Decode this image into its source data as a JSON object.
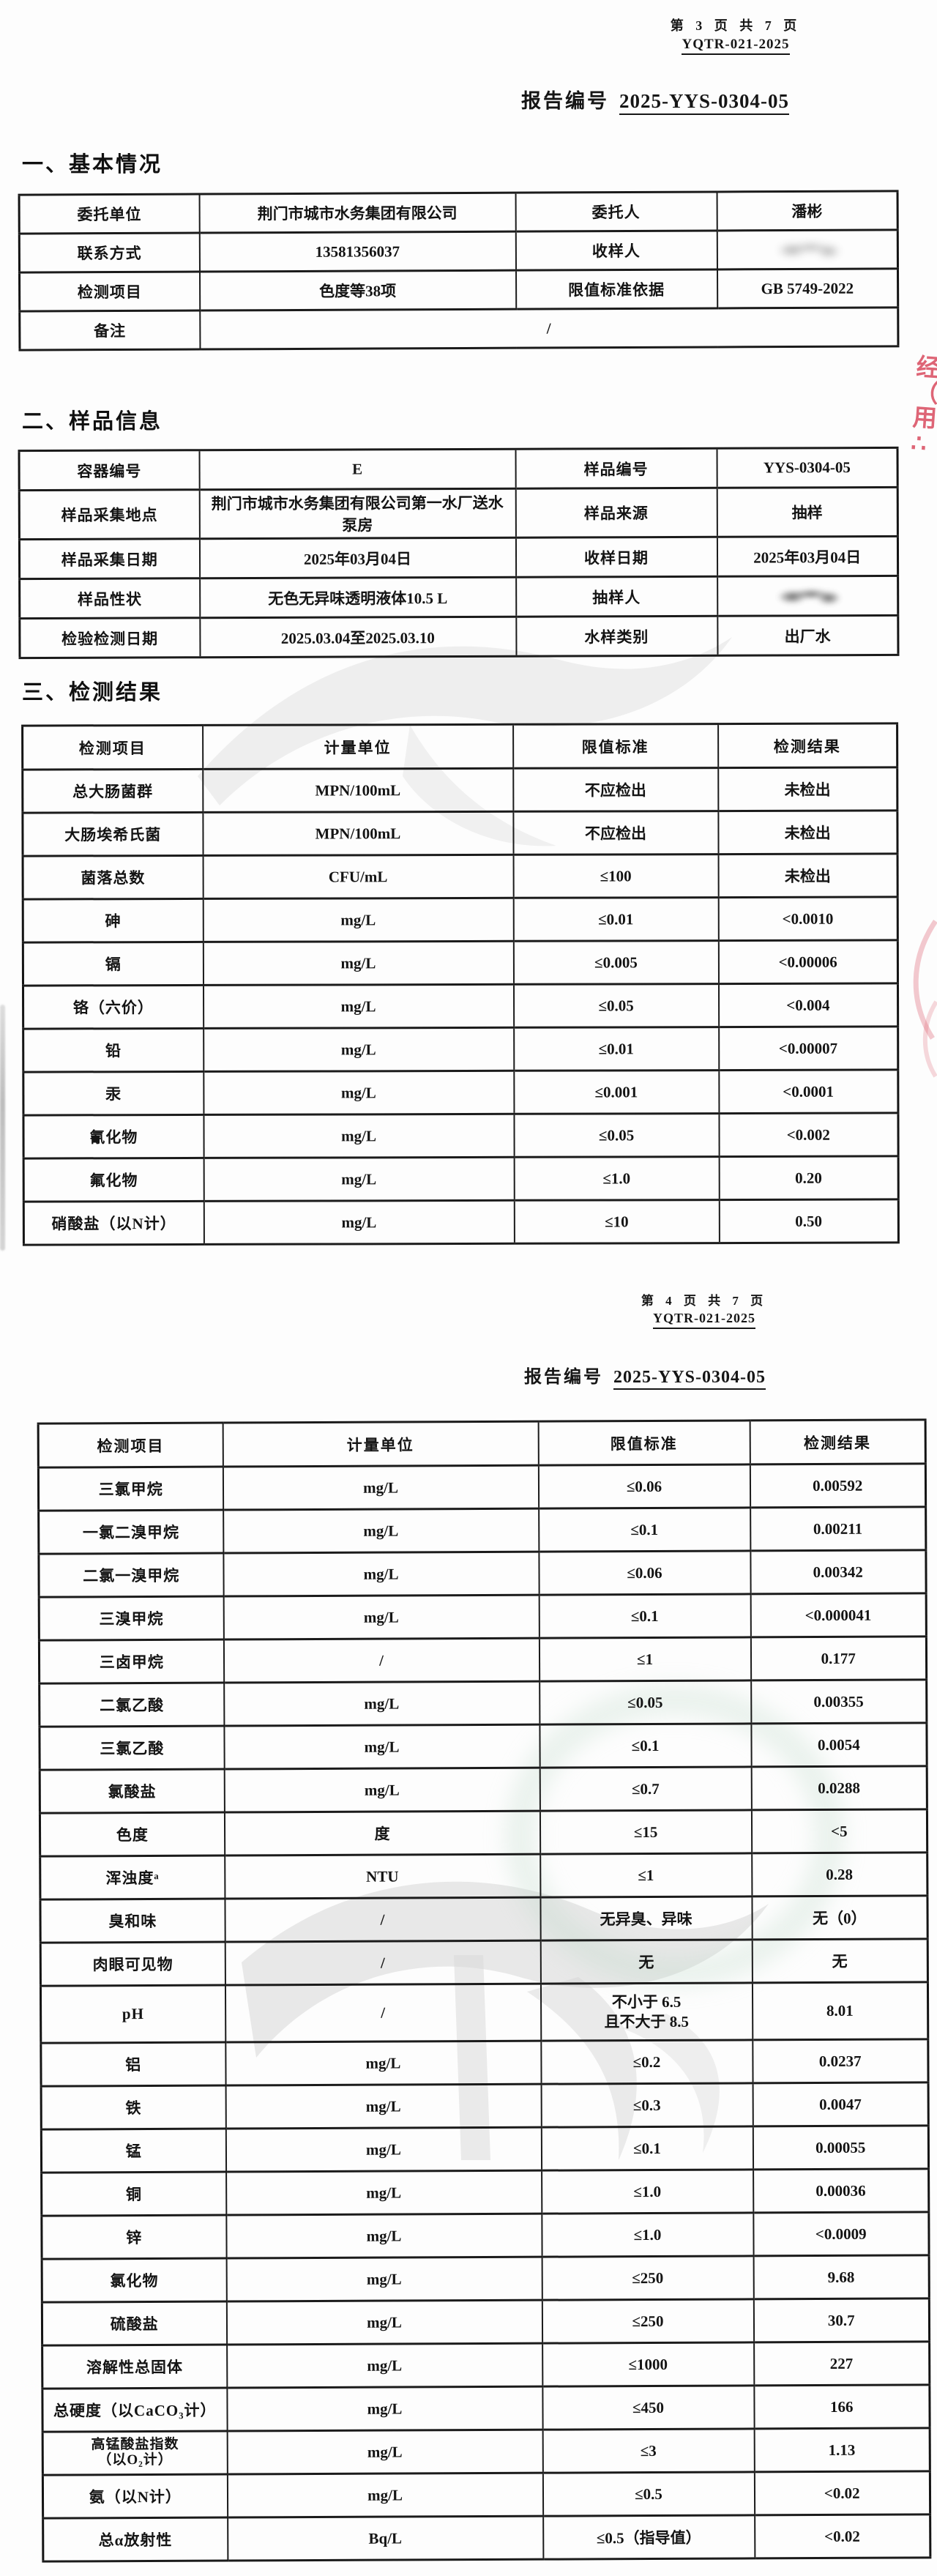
{
  "page3": {
    "page_line": "第 3 页 共 7 页",
    "doc_code": "YQTR-021-2025",
    "report_label": "报告编号",
    "report_number": "2025-YYS-0304-05",
    "section_basic": {
      "title": "一、基本情况",
      "rows": [
        {
          "cells": [
            "委托单位",
            "荆门市城市水务集团有限公司",
            "委托人",
            "潘彬"
          ]
        },
        {
          "cells": [
            "联系方式",
            "13581356037",
            "收样人",
            {
              "signature": "light"
            }
          ]
        },
        {
          "cells": [
            "检测项目",
            "色度等38项",
            "限值标准依据",
            "GB 5749-2022"
          ]
        },
        {
          "cells": [
            "备注",
            "/"
          ],
          "span": 3
        }
      ]
    },
    "section_sample": {
      "title": "二、样品信息",
      "rows": [
        {
          "cells": [
            "容器编号",
            "E",
            "样品编号",
            "YYS-0304-05"
          ]
        },
        {
          "cells": [
            "样品采集地点",
            "荆门市城市水务集团有限公司第一水厂送水泵房",
            "样品来源",
            "抽样"
          ]
        },
        {
          "cells": [
            "样品采集日期",
            "2025年03月04日",
            "收样日期",
            "2025年03月04日"
          ]
        },
        {
          "cells": [
            "样品性状",
            "无色无异味透明液体10.5 L",
            "抽样人",
            {
              "signature": "dark"
            }
          ]
        },
        {
          "cells": [
            "检验检测日期",
            "2025.03.04至2025.03.10",
            "水样类别",
            "出厂水"
          ]
        }
      ]
    },
    "section_results": {
      "title": "三、检测结果",
      "headers": [
        "检测项目",
        "计量单位",
        "限值标准",
        "检测结果"
      ],
      "rows": [
        [
          "总大肠菌群",
          "MPN/100mL",
          "不应检出",
          "未检出"
        ],
        [
          "大肠埃希氏菌",
          "MPN/100mL",
          "不应检出",
          "未检出"
        ],
        [
          "菌落总数",
          "CFU/mL",
          "≤100",
          "未检出"
        ],
        [
          "砷",
          "mg/L",
          "≤0.01",
          "<0.0010"
        ],
        [
          "镉",
          "mg/L",
          "≤0.005",
          "<0.00006"
        ],
        [
          "铬（六价）",
          "mg/L",
          "≤0.05",
          "<0.004"
        ],
        [
          "铅",
          "mg/L",
          "≤0.01",
          "<0.00007"
        ],
        [
          "汞",
          "mg/L",
          "≤0.001",
          "<0.0001"
        ],
        [
          "氰化物",
          "mg/L",
          "≤0.05",
          "<0.002"
        ],
        [
          "氟化物",
          "mg/L",
          "≤1.0",
          "0.20"
        ],
        [
          "硝酸盐（以N计）",
          "mg/L",
          "≤10",
          "0.50"
        ]
      ]
    }
  },
  "page4": {
    "page_line": "第 4 页 共 7 页",
    "doc_code": "YQTR-021-2025",
    "report_label": "报告编号",
    "report_number": "2025-YYS-0304-05",
    "results": {
      "headers": [
        "检测项目",
        "计量单位",
        "限值标准",
        "检测结果"
      ],
      "rows": [
        [
          "三氯甲烷",
          "mg/L",
          "≤0.06",
          "0.00592"
        ],
        [
          "一氯二溴甲烷",
          "mg/L",
          "≤0.1",
          "0.00211"
        ],
        [
          "二氯一溴甲烷",
          "mg/L",
          "≤0.06",
          "0.00342"
        ],
        [
          "三溴甲烷",
          "mg/L",
          "≤0.1",
          "<0.000041"
        ],
        [
          "三卤甲烷",
          "/",
          "≤1",
          "0.177"
        ],
        [
          "二氯乙酸",
          "mg/L",
          "≤0.05",
          "0.00355"
        ],
        [
          "三氯乙酸",
          "mg/L",
          "≤0.1",
          "0.0054"
        ],
        [
          "氯酸盐",
          "mg/L",
          "≤0.7",
          "0.0288"
        ],
        [
          "色度",
          "度",
          "≤15",
          "<5"
        ],
        [
          "浑浊度ᵃ",
          "NTU",
          "≤1",
          "0.28"
        ],
        [
          "臭和味",
          "/",
          "无异臭、异味",
          "无（0）"
        ],
        [
          "肉眼可见物",
          "/",
          "无",
          "无"
        ],
        [
          "pH",
          "/",
          "不小于 6.5\n且不大于 8.5",
          "8.01"
        ],
        [
          "铝",
          "mg/L",
          "≤0.2",
          "0.0237"
        ],
        [
          "铁",
          "mg/L",
          "≤0.3",
          "0.0047"
        ],
        [
          "锰",
          "mg/L",
          "≤0.1",
          "0.00055"
        ],
        [
          "铜",
          "mg/L",
          "≤1.0",
          "0.00036"
        ],
        [
          "锌",
          "mg/L",
          "≤1.0",
          "<0.0009"
        ],
        [
          "氯化物",
          "mg/L",
          "≤250",
          "9.68"
        ],
        [
          "硫酸盐",
          "mg/L",
          "≤250",
          "30.7"
        ],
        [
          "溶解性总固体",
          "mg/L",
          "≤1000",
          "227"
        ],
        [
          "总硬度（以CaCO₃计）",
          "mg/L",
          "≤450",
          "166"
        ],
        [
          "高锰酸盐指数\n（以O₂计）",
          "mg/L",
          "≤3",
          "1.13"
        ],
        [
          "氨（以N计）",
          "mg/L",
          "≤0.5",
          "<0.02"
        ],
        [
          "总α放射性",
          "Bq/L",
          "≤0.5（指导值）",
          "<0.02"
        ]
      ]
    }
  },
  "stamp": {
    "color": "#d63e54",
    "chars": [
      "经",
      "（",
      "用",
      "∴"
    ]
  }
}
